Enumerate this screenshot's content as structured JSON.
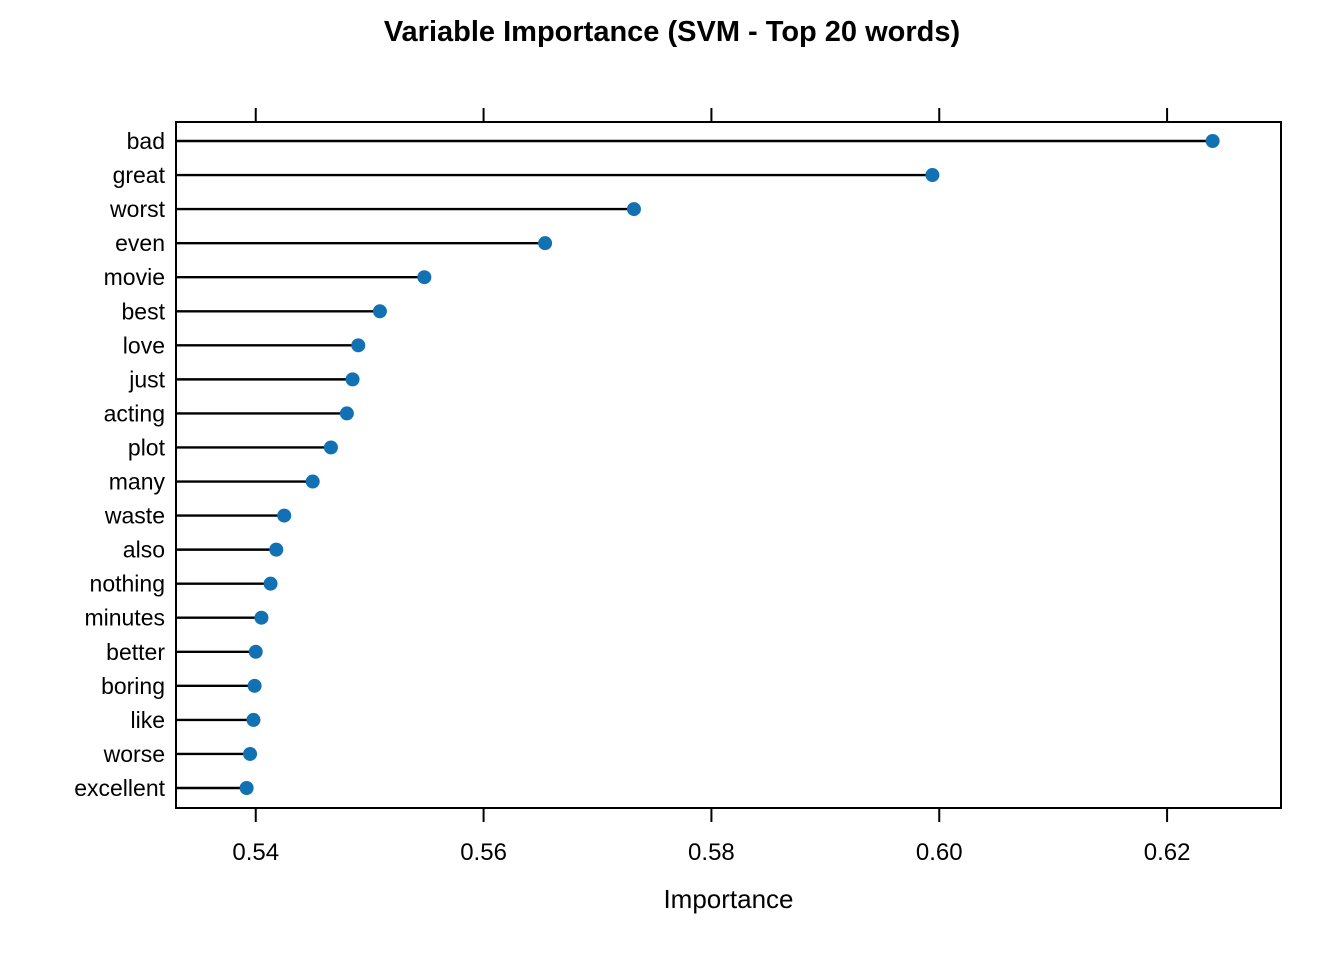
{
  "chart_data": {
    "type": "scatter",
    "subtype": "horizontal-lollipop-dotplot",
    "title": "Variable Importance (SVM - Top 20 words)",
    "xlabel": "Importance",
    "ylabel": "",
    "categories": [
      "bad",
      "great",
      "worst",
      "even",
      "movie",
      "best",
      "love",
      "just",
      "acting",
      "plot",
      "many",
      "waste",
      "also",
      "nothing",
      "minutes",
      "better",
      "boring",
      "like",
      "worse",
      "excellent"
    ],
    "values": [
      0.624,
      0.5994,
      0.5732,
      0.5654,
      0.5548,
      0.5509,
      0.549,
      0.5485,
      0.548,
      0.5466,
      0.545,
      0.5425,
      0.5418,
      0.5413,
      0.5405,
      0.54,
      0.5399,
      0.5398,
      0.5395,
      0.5392
    ],
    "xlim": [
      0.533,
      0.63
    ],
    "xticks": [
      0.54,
      0.56,
      0.58,
      0.6,
      0.62
    ],
    "xtick_labels": [
      "0.54",
      "0.56",
      "0.58",
      "0.60",
      "0.62"
    ],
    "grid": false,
    "legend": "none",
    "ticks_on_top_axis": true,
    "point_color": "#1271b3",
    "stem_color": "#000000",
    "box_color": "#000000",
    "background_color": "#ffffff"
  }
}
